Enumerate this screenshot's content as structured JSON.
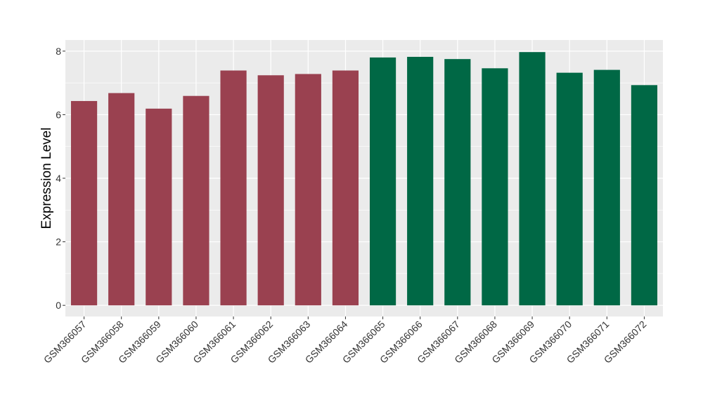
{
  "chart_data": {
    "type": "bar",
    "title": "",
    "xlabel": "",
    "ylabel": "Expression Level",
    "ylim": [
      -0.35,
      8.35
    ],
    "yticks": [
      0,
      2,
      4,
      6,
      8
    ],
    "grid": true,
    "categories": [
      "GSM366057",
      "GSM366058",
      "GSM366059",
      "GSM366060",
      "GSM366061",
      "GSM366062",
      "GSM366063",
      "GSM366064",
      "GSM366065",
      "GSM366066",
      "GSM366067",
      "GSM366068",
      "GSM366069",
      "GSM366070",
      "GSM366071",
      "GSM366072"
    ],
    "values": [
      6.43,
      6.68,
      6.19,
      6.59,
      7.39,
      7.24,
      7.28,
      7.39,
      7.8,
      7.82,
      7.75,
      7.46,
      7.97,
      7.32,
      7.41,
      6.93
    ],
    "bar_colors": [
      "#9a4150",
      "#9a4150",
      "#9a4150",
      "#9a4150",
      "#9a4150",
      "#9a4150",
      "#9a4150",
      "#9a4150",
      "#006845",
      "#006845",
      "#006845",
      "#006845",
      "#006845",
      "#006845",
      "#006845",
      "#006845"
    ],
    "panel_background": "#ebebeb",
    "gridline_color": "#ffffff"
  }
}
